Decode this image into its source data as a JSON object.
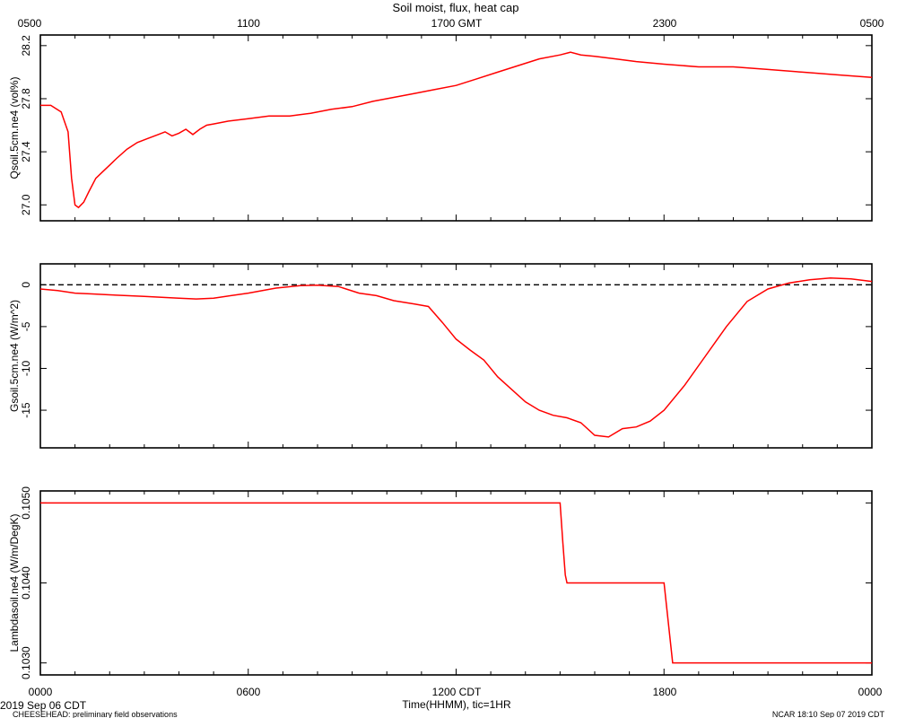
{
  "top_title": "Soil moist, flux, heat cap",
  "top_axis_ticks": [
    "0500",
    "1100",
    "1700 GMT",
    "2300",
    "0500"
  ],
  "bottom_axis_ticks": [
    "0000",
    "0600",
    "1200 CDT",
    "1800",
    "0000"
  ],
  "bottom_date": "2019 Sep 06 CDT",
  "bottom_xlabel": "Time(HHMM), tic=1HR",
  "footer_left": "CHEESEHEAD: preliminary field observations",
  "footer_right": "NCAR 18:10 Sep 07 2019 CDT",
  "colors": {
    "line": "#ff0000",
    "axis": "#000000",
    "zero_line": "#000000"
  },
  "chart_data": [
    {
      "type": "line",
      "ylabel": "Qsoil.5cm.ne4 (vol%)",
      "xlim": [
        0,
        24
      ],
      "ylim": [
        26.88,
        28.28
      ],
      "yticks": [
        27.0,
        27.4,
        27.8,
        28.2
      ],
      "ytick_labels": [
        "27.0",
        "27.4",
        "27.8",
        "28.2"
      ],
      "x": [
        0,
        0.3,
        0.6,
        0.8,
        0.9,
        1.0,
        1.1,
        1.25,
        1.4,
        1.6,
        1.8,
        2.0,
        2.2,
        2.5,
        2.8,
        3.1,
        3.4,
        3.6,
        3.8,
        4.0,
        4.2,
        4.4,
        4.6,
        4.8,
        5.0,
        5.4,
        6.0,
        6.6,
        7.2,
        7.8,
        8.4,
        9.0,
        9.6,
        10.2,
        10.8,
        11.4,
        12.0,
        12.6,
        13.2,
        13.8,
        14.4,
        15.0,
        15.3,
        15.6,
        16.0,
        16.6,
        17.2,
        18.0,
        19.0,
        20.0,
        21.0,
        22.0,
        23.0,
        24.0
      ],
      "y": [
        27.75,
        27.75,
        27.7,
        27.55,
        27.2,
        27.0,
        26.98,
        27.02,
        27.1,
        27.2,
        27.25,
        27.3,
        27.35,
        27.42,
        27.47,
        27.5,
        27.53,
        27.55,
        27.52,
        27.54,
        27.57,
        27.53,
        27.57,
        27.6,
        27.61,
        27.63,
        27.65,
        27.67,
        27.67,
        27.69,
        27.72,
        27.74,
        27.78,
        27.81,
        27.84,
        27.87,
        27.9,
        27.95,
        28.0,
        28.05,
        28.1,
        28.13,
        28.15,
        28.13,
        28.12,
        28.1,
        28.08,
        28.06,
        28.04,
        28.04,
        28.02,
        28.0,
        27.98,
        27.96
      ]
    },
    {
      "type": "line",
      "ylabel": "Gsoil.5cm.ne4 (W/m^2)",
      "xlim": [
        0,
        24
      ],
      "ylim": [
        -19.5,
        2.5
      ],
      "yticks": [
        0,
        -5,
        -10,
        -15
      ],
      "ytick_labels": [
        "0",
        "-5",
        "-10",
        "-15"
      ],
      "zero_line": true,
      "x": [
        0,
        0.5,
        1.0,
        1.5,
        2.0,
        3.0,
        4.0,
        4.5,
        5.0,
        6.0,
        6.8,
        7.5,
        8.0,
        8.6,
        9.2,
        9.7,
        10.2,
        10.8,
        11.2,
        11.6,
        12.0,
        12.4,
        12.8,
        13.2,
        13.6,
        14.0,
        14.4,
        14.8,
        15.2,
        15.6,
        16.0,
        16.4,
        16.8,
        17.2,
        17.6,
        18.0,
        18.6,
        19.2,
        19.8,
        20.4,
        21.0,
        21.6,
        22.2,
        22.8,
        23.4,
        24.0
      ],
      "y": [
        -0.5,
        -0.7,
        -1.0,
        -1.1,
        -1.2,
        -1.4,
        -1.6,
        -1.7,
        -1.6,
        -1.0,
        -0.4,
        -0.1,
        -0.05,
        -0.2,
        -1.0,
        -1.3,
        -1.9,
        -2.3,
        -2.6,
        -4.5,
        -6.5,
        -7.8,
        -9.0,
        -11.0,
        -12.5,
        -14.0,
        -15.0,
        -15.6,
        -15.9,
        -16.5,
        -18.0,
        -18.2,
        -17.2,
        -17.0,
        -16.3,
        -15.0,
        -12.0,
        -8.5,
        -5.0,
        -2.0,
        -0.5,
        0.2,
        0.6,
        0.8,
        0.7,
        0.4
      ]
    },
    {
      "type": "line",
      "ylabel": "Lambdasoil.ne4 (W/m/DegK)",
      "xlim": [
        0,
        24
      ],
      "ylim": [
        0.10285,
        0.10515
      ],
      "yticks": [
        0.103,
        0.104,
        0.105
      ],
      "ytick_labels": [
        "0.1030",
        "0.1040",
        "0.1050"
      ],
      "x": [
        0,
        15.0,
        15.08,
        15.15,
        15.2,
        17.85,
        18.0,
        18.25,
        24.0
      ],
      "y": [
        0.105,
        0.105,
        0.1045,
        0.1041,
        0.104,
        0.104,
        0.104,
        0.103,
        0.103
      ]
    }
  ]
}
